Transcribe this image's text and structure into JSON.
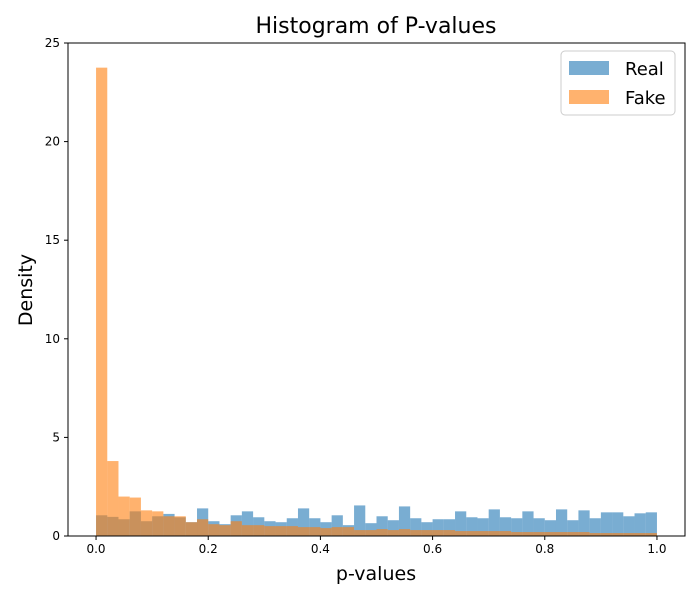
{
  "chart_data": {
    "type": "histogram",
    "title": "Histogram of P-values",
    "xlabel": "p-values",
    "ylabel": "Density",
    "xlim": [
      -0.05,
      1.05
    ],
    "ylim": [
      0,
      25
    ],
    "x_ticks": [
      "0.0",
      "0.2",
      "0.4",
      "0.6",
      "0.8",
      "1.0"
    ],
    "x_tick_values": [
      0.0,
      0.2,
      0.4,
      0.6,
      0.8,
      1.0
    ],
    "y_ticks": [
      "0",
      "5",
      "10",
      "15",
      "20",
      "25"
    ],
    "y_tick_values": [
      0,
      5,
      10,
      15,
      20,
      25
    ],
    "bins": 50,
    "bin_range": [
      0,
      1
    ],
    "grid": false,
    "legend_position": "top-right",
    "series": [
      {
        "name": "Real",
        "color": "#1f77b4",
        "alpha": 0.6,
        "values": [
          1.05,
          0.97,
          0.85,
          1.25,
          0.75,
          1.0,
          1.12,
          0.95,
          0.7,
          1.4,
          0.75,
          0.6,
          1.05,
          1.25,
          0.95,
          0.75,
          0.7,
          0.9,
          1.4,
          0.9,
          0.7,
          1.05,
          0.55,
          1.55,
          0.65,
          1.0,
          0.8,
          1.5,
          0.9,
          0.7,
          0.85,
          0.85,
          1.25,
          0.95,
          0.9,
          1.35,
          0.95,
          0.9,
          1.25,
          0.9,
          0.8,
          1.35,
          0.8,
          1.3,
          0.9,
          1.2,
          1.2,
          1.0,
          1.15,
          1.2
        ]
      },
      {
        "name": "Fake",
        "color": "#ff7f0e",
        "alpha": 0.6,
        "values": [
          23.75,
          3.8,
          2.0,
          1.95,
          1.3,
          1.25,
          1.0,
          1.0,
          0.7,
          0.85,
          0.6,
          0.55,
          0.75,
          0.55,
          0.55,
          0.5,
          0.5,
          0.5,
          0.45,
          0.45,
          0.4,
          0.45,
          0.45,
          0.3,
          0.3,
          0.35,
          0.3,
          0.35,
          0.3,
          0.3,
          0.3,
          0.3,
          0.25,
          0.25,
          0.25,
          0.25,
          0.25,
          0.2,
          0.2,
          0.2,
          0.2,
          0.2,
          0.2,
          0.2,
          0.15,
          0.15,
          0.15,
          0.15,
          0.15,
          0.15
        ]
      }
    ]
  }
}
